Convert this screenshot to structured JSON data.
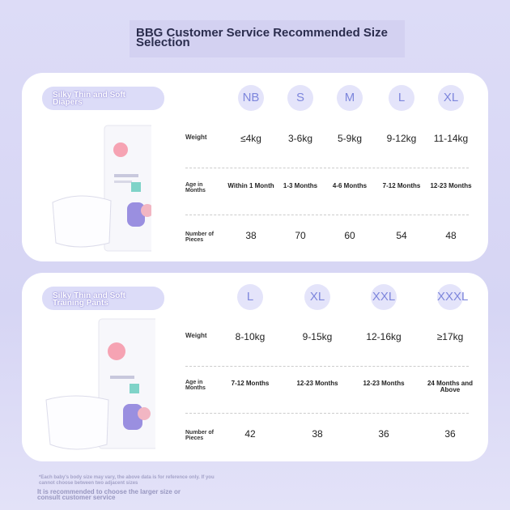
{
  "title": "BBG Customer Service Recommended Size Selection",
  "sections": [
    {
      "label": "Silky Thin and Soft Diapers",
      "sizes": [
        "NB",
        "S",
        "M",
        "L",
        "XL"
      ],
      "rows": [
        {
          "label": "Weight",
          "values": [
            "≤4kg",
            "3-6kg",
            "5-9kg",
            "9-12kg",
            "11-14kg"
          ]
        },
        {
          "label": "Age in Months",
          "values": [
            "Within 1 Month",
            "1-3 Months",
            "4-6 Months",
            "7-12 Months",
            "12-23 Months"
          ]
        },
        {
          "label": "Number of Pieces",
          "values": [
            38,
            70,
            60,
            54,
            48
          ]
        }
      ]
    },
    {
      "label": "Silky Thin and Soft Training Pants",
      "sizes": [
        "L",
        "XL",
        "XXL",
        "XXXL"
      ],
      "rows": [
        {
          "label": "Weight",
          "values": [
            "8-10kg",
            "9-15kg",
            "12-16kg",
            "≥17kg"
          ]
        },
        {
          "label": "Age in Months",
          "values": [
            "7-12 Months",
            "12-23 Months",
            "12-23 Months",
            "24 Months and Above"
          ]
        },
        {
          "label": "Number of Pieces",
          "values": [
            42,
            38,
            36,
            36
          ]
        }
      ]
    }
  ],
  "footnotes": [
    "*Each baby's body size may vary, the above data is for reference only. If you cannot choose between two adjacent sizes",
    "It is recommended to choose the larger size or consult customer service"
  ]
}
